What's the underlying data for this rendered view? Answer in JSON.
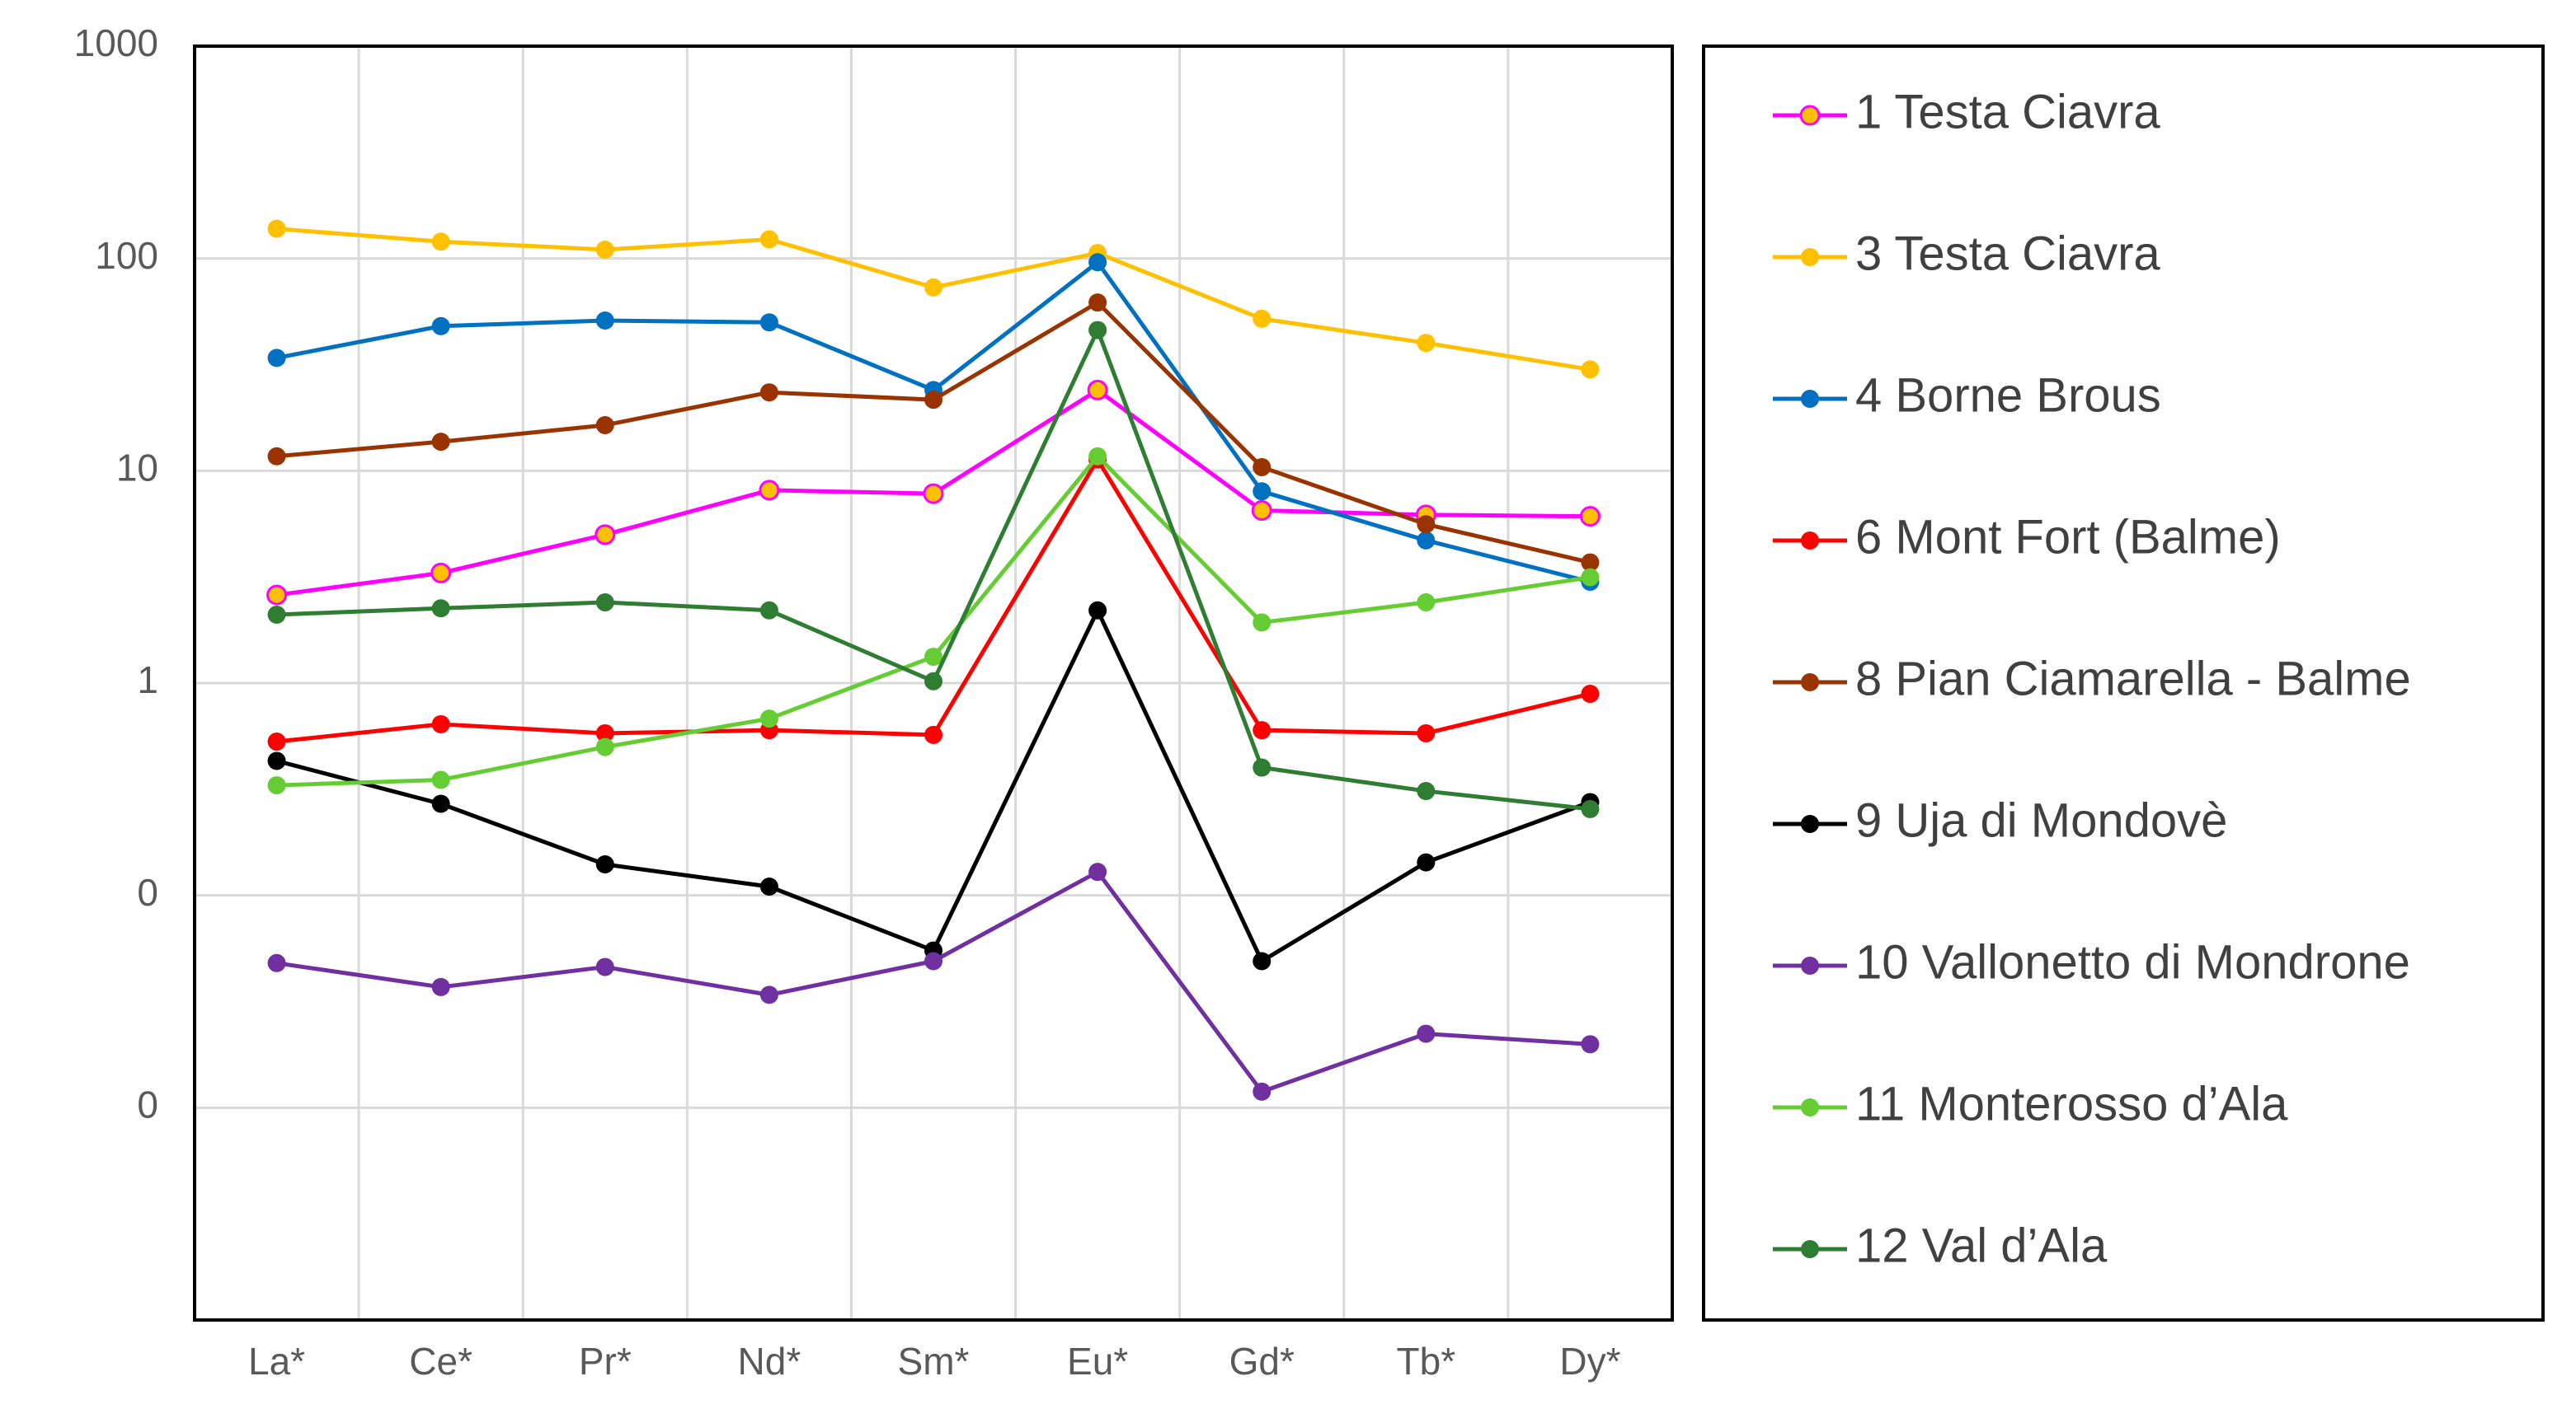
{
  "chart_data": {
    "type": "line",
    "title": "",
    "xlabel": "",
    "ylabel": "",
    "yscale": "log",
    "ylim": [
      0.001,
      1000
    ],
    "grid": true,
    "legend_position": "right",
    "y_tick_labels": [
      "1000",
      "100",
      "10",
      "1",
      "0",
      "0"
    ],
    "y_tick_values": [
      1000,
      100,
      10,
      1,
      0.1,
      0.01
    ],
    "categories": [
      "La*",
      "Ce*",
      "Pr*",
      "Nd*",
      "Sm*",
      "Eu*",
      "Gd*",
      "Tb*",
      "Dy*"
    ],
    "series": [
      {
        "name": "1 Testa Ciavra",
        "color": "#FF00FF",
        "marker_fill": "#FFC000",
        "values": [
          2.6,
          3.3,
          5.0,
          8.1,
          7.8,
          24,
          6.5,
          6.2,
          6.1
        ]
      },
      {
        "name": "3 Testa Ciavra",
        "color": "#FFC000",
        "marker_fill": "#FFC000",
        "values": [
          138,
          120,
          110,
          123,
          73,
          106,
          52,
          40,
          30
        ]
      },
      {
        "name": "4 Borne Brous",
        "color": "#0070C0",
        "marker_fill": "#0070C0",
        "values": [
          34,
          48,
          51,
          50,
          24,
          96,
          8,
          4.7,
          3.0
        ]
      },
      {
        "name": "6 Mont Fort (Balme)",
        "color": "#FF0000",
        "marker_fill": "#FF0000",
        "values": [
          0.53,
          0.64,
          0.58,
          0.6,
          0.57,
          11.3,
          0.6,
          0.58,
          0.89
        ]
      },
      {
        "name": "8 Pian Ciamarella - Balme",
        "color": "#993300",
        "marker_fill": "#993300",
        "values": [
          11.7,
          13.7,
          16.4,
          23.4,
          21.6,
          62,
          10.4,
          5.6,
          3.7
        ]
      },
      {
        "name": "9 Uja di Mondovè",
        "color": "#000000",
        "marker_fill": "#000000",
        "values": [
          0.43,
          0.27,
          0.14,
          0.11,
          0.055,
          2.2,
          0.049,
          0.143,
          0.275
        ]
      },
      {
        "name": "10 Vallonetto di Mondrone",
        "color": "#7030A0",
        "marker_fill": "#7030A0",
        "values": [
          0.048,
          0.037,
          0.046,
          0.034,
          0.049,
          0.129,
          0.0119,
          0.0223,
          0.0199
        ]
      },
      {
        "name": "11 Monterosso d’Ala",
        "color": "#66CC33",
        "marker_fill": "#66CC33",
        "values": [
          0.33,
          0.35,
          0.5,
          0.68,
          1.33,
          11.7,
          1.93,
          2.4,
          3.15
        ]
      },
      {
        "name": "12 Val d’Ala",
        "color": "#2E7D32",
        "marker_fill": "#2E7D32",
        "values": [
          2.1,
          2.25,
          2.4,
          2.2,
          1.02,
          46,
          0.4,
          0.31,
          0.255
        ]
      }
    ]
  }
}
